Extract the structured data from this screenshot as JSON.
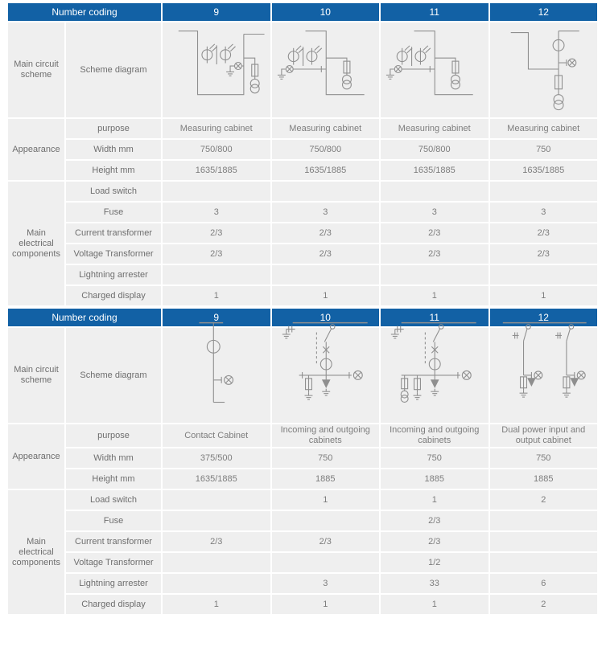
{
  "colors": {
    "header_bg": "#1261a5",
    "header_text": "#ffffff",
    "cell_bg": "#efefef",
    "label_text": "#6e6e6e",
    "value_text": "#7d7d7d",
    "diagram_stroke": "#8f8f8f"
  },
  "tables": [
    {
      "header": {
        "title": "Number coding",
        "columns": [
          "9",
          "10",
          "11",
          "12"
        ]
      },
      "sections": [
        {
          "label": "Main circuit scheme",
          "rows": [
            {
              "label": "Scheme diagram",
              "type": "diagram",
              "values": [
                "measuring-cabinet-scheme-9",
                "measuring-cabinet-scheme-10",
                "measuring-cabinet-scheme-11",
                "measuring-cabinet-scheme-12"
              ]
            }
          ]
        },
        {
          "label": "Appearance",
          "rows": [
            {
              "label": "purpose",
              "values": [
                "Measuring cabinet",
                "Measuring cabinet",
                "Measuring cabinet",
                "Measuring cabinet"
              ]
            },
            {
              "label": "Width mm",
              "values": [
                "750/800",
                "750/800",
                "750/800",
                "750"
              ]
            },
            {
              "label": "Height mm",
              "values": [
                "1635/1885",
                "1635/1885",
                "1635/1885",
                "1635/1885"
              ]
            }
          ]
        },
        {
          "label": "Main electrical components",
          "rows": [
            {
              "label": "Load switch",
              "values": [
                "",
                "",
                "",
                ""
              ]
            },
            {
              "label": "Fuse",
              "values": [
                "3",
                "3",
                "3",
                "3"
              ]
            },
            {
              "label": "Current transformer",
              "values": [
                "2/3",
                "2/3",
                "2/3",
                "2/3"
              ]
            },
            {
              "label": "Voltage Transformer",
              "values": [
                "2/3",
                "2/3",
                "2/3",
                "2/3"
              ]
            },
            {
              "label": "Lightning arrester",
              "values": [
                "",
                "",
                "",
                ""
              ]
            },
            {
              "label": "Charged display",
              "values": [
                "1",
                "1",
                "1",
                "1"
              ]
            }
          ]
        }
      ]
    },
    {
      "header": {
        "title": "Number coding",
        "columns": [
          "9",
          "10",
          "11",
          "12"
        ]
      },
      "sections": [
        {
          "label": "Main circuit scheme",
          "rows": [
            {
              "label": "Scheme diagram",
              "type": "diagram",
              "values": [
                "contact-cabinet-scheme-9",
                "incoming-outgoing-scheme-10",
                "incoming-outgoing-scheme-11",
                "dual-power-scheme-12"
              ]
            }
          ]
        },
        {
          "label": "Appearance",
          "rows": [
            {
              "label": "purpose",
              "values": [
                "Contact Cabinet",
                "Incoming and outgoing cabinets",
                "Incoming and outgoing cabinets",
                "Dual power input and output cabinet"
              ]
            },
            {
              "label": "Width mm",
              "values": [
                "375/500",
                "750",
                "750",
                "750"
              ]
            },
            {
              "label": "Height mm",
              "values": [
                "1635/1885",
                "1885",
                "1885",
                "1885"
              ]
            }
          ]
        },
        {
          "label": "Main electrical components",
          "rows": [
            {
              "label": "Load switch",
              "values": [
                "",
                "1",
                "1",
                "2"
              ]
            },
            {
              "label": "Fuse",
              "values": [
                "",
                "",
                "2/3",
                ""
              ]
            },
            {
              "label": "Current transformer",
              "values": [
                "2/3",
                "2/3",
                "2/3",
                ""
              ]
            },
            {
              "label": "Voltage Transformer",
              "values": [
                "",
                "",
                "1/2",
                ""
              ]
            },
            {
              "label": "Lightning arrester",
              "values": [
                "",
                "3",
                "33",
                "6"
              ]
            },
            {
              "label": "Charged display",
              "values": [
                "1",
                "1",
                "1",
                "2"
              ]
            }
          ]
        }
      ]
    }
  ]
}
